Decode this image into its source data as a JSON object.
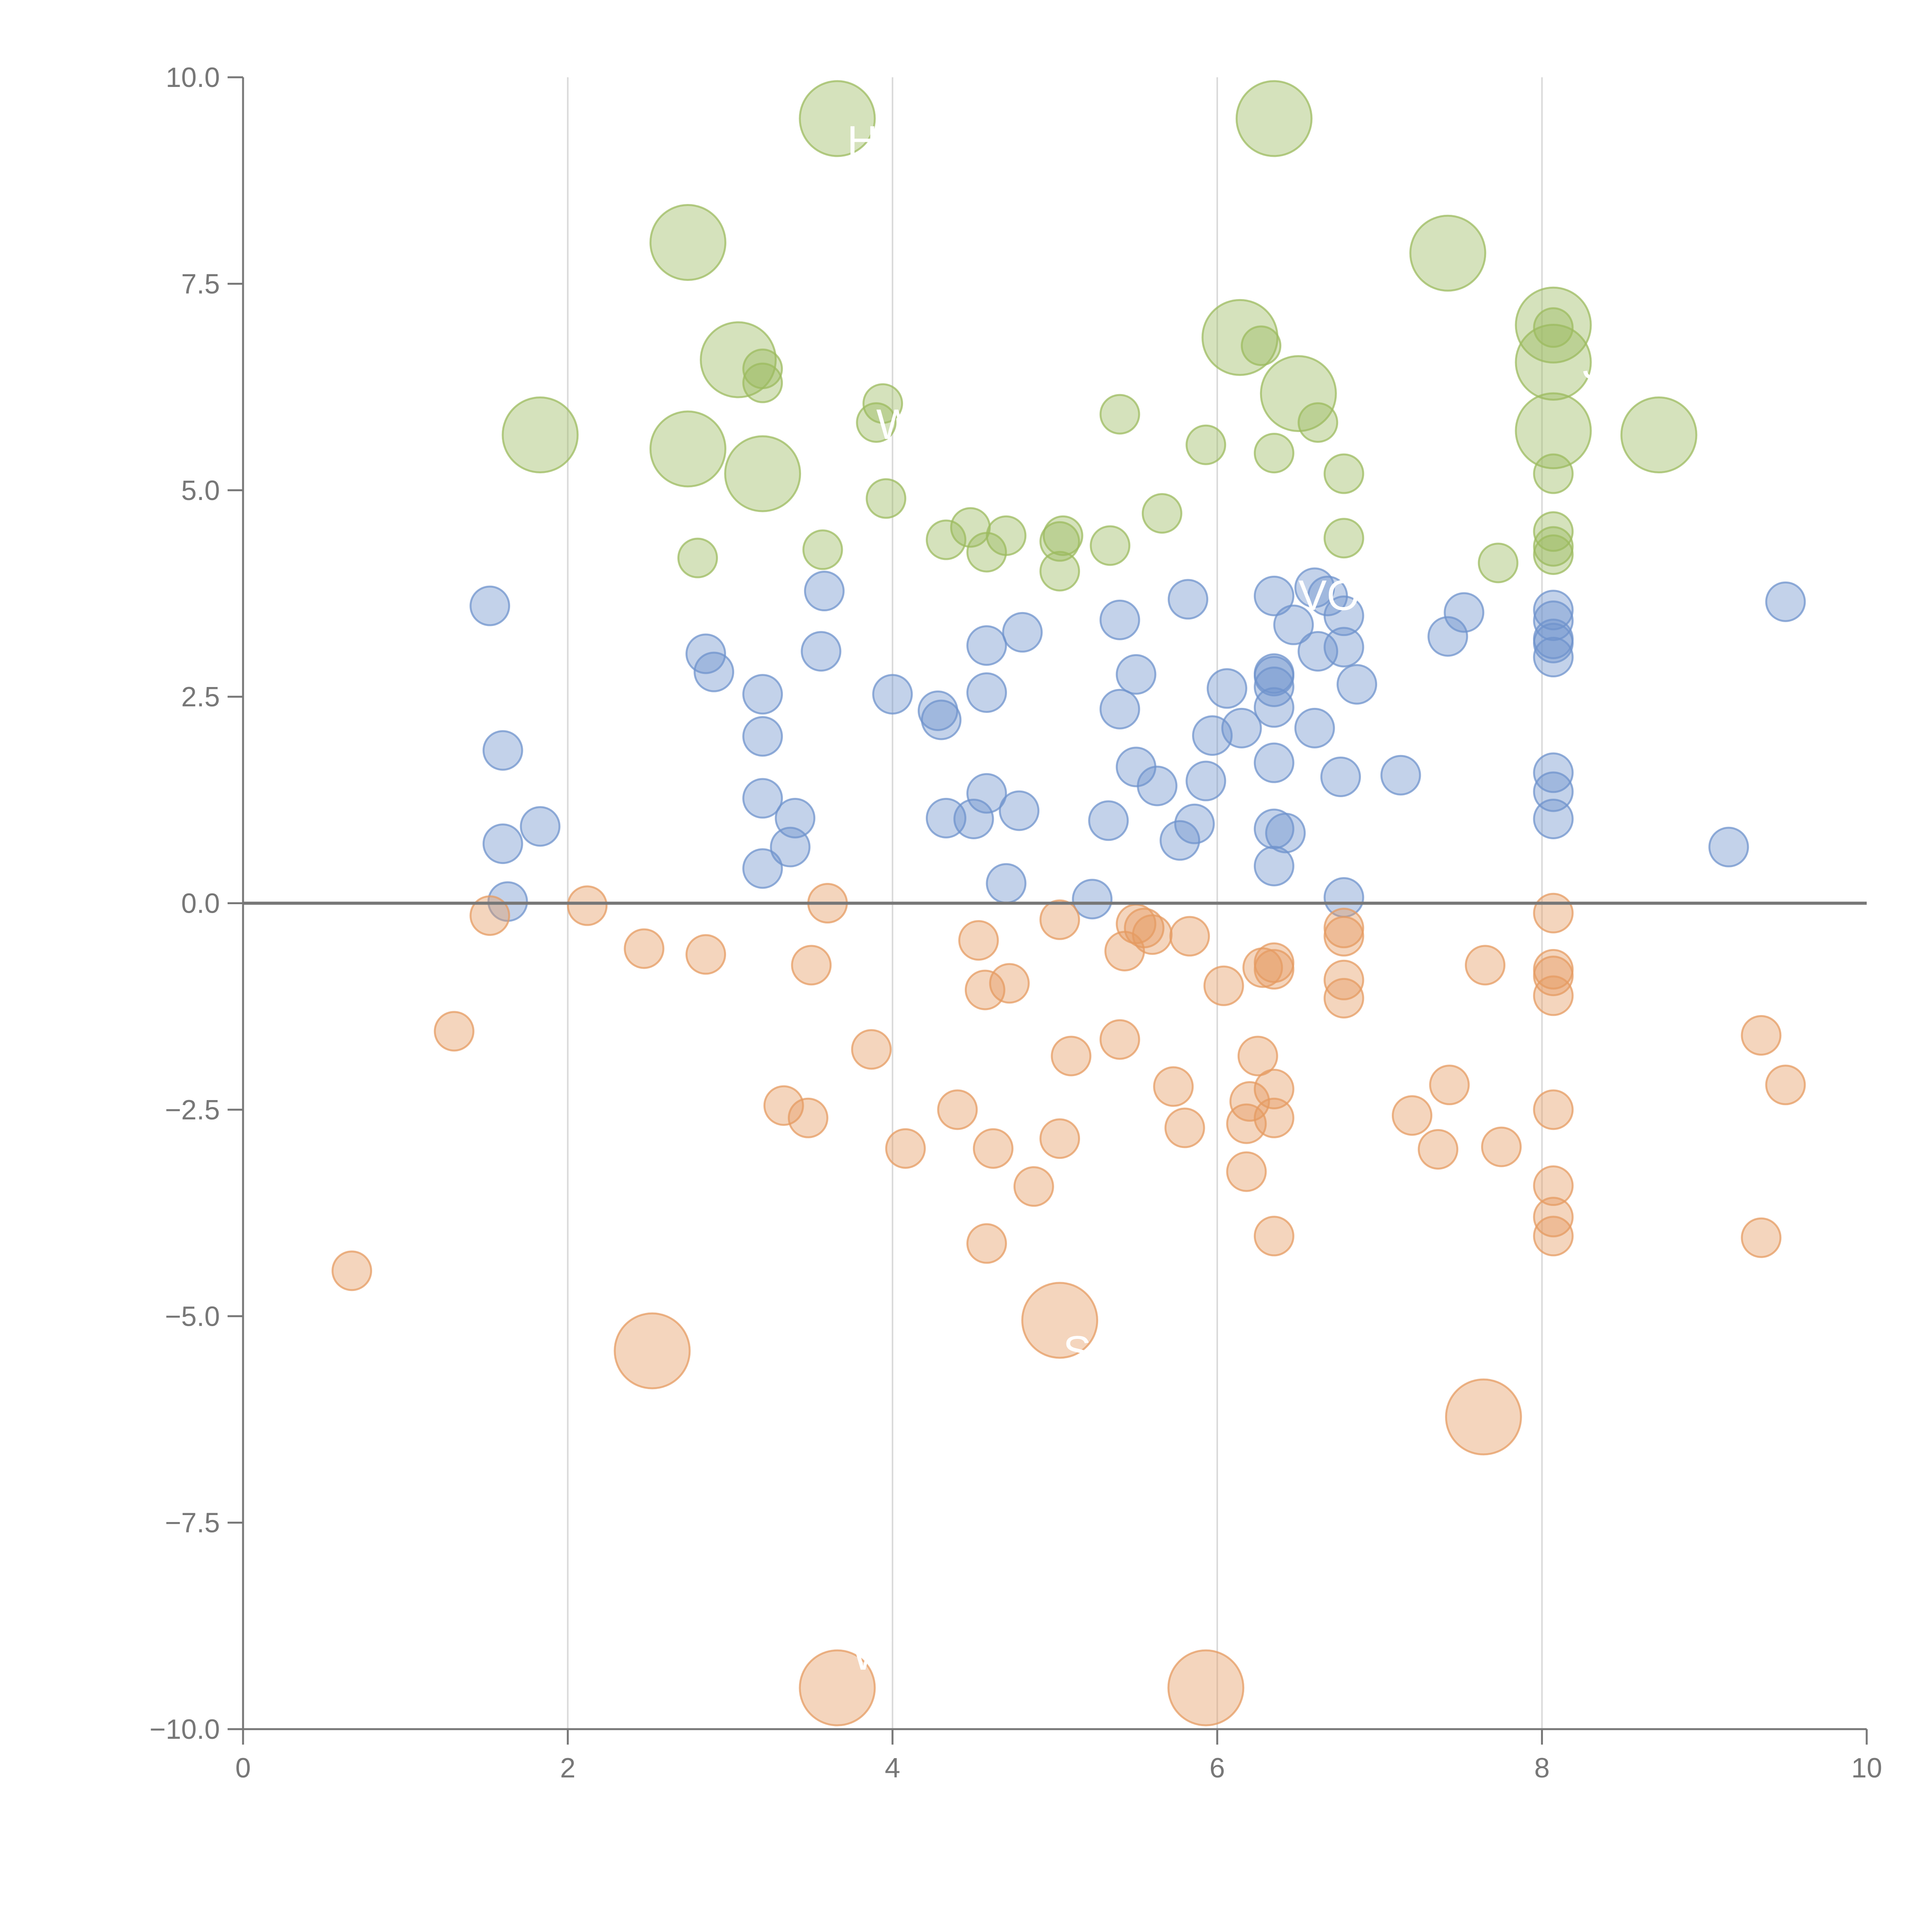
{
  "chart_data": {
    "type": "scatter",
    "title": "",
    "xlabel": "",
    "ylabel": "",
    "xlim": [
      0,
      10
    ],
    "ylim": [
      -10,
      10
    ],
    "x_ticks": [
      0,
      2,
      4,
      6,
      8,
      10
    ],
    "x_tick_labels": [
      "0",
      "2",
      "4",
      "6",
      "8",
      "10"
    ],
    "y_ticks": [
      10,
      7.5,
      5,
      2.5,
      0,
      -2.5,
      -5,
      -7.5,
      -10
    ],
    "y_tick_labels": [
      "10.0",
      "7.5",
      "5.0",
      "2.5",
      "0.0",
      "−2.5",
      "−5.0",
      "−7.5",
      "−10.0"
    ],
    "vertical_grid": true,
    "horizontal_grid": false,
    "zero_line": true,
    "legend": "none",
    "series": [
      {
        "color": "#9cbb5f",
        "points": [
          [
            3.66,
            9.5,
            2
          ],
          [
            6.35,
            9.5,
            2
          ],
          [
            2.74,
            8.0,
            2
          ],
          [
            7.42,
            7.87,
            2
          ],
          [
            8.07,
            7.0,
            2
          ],
          [
            6.14,
            6.85,
            2
          ],
          [
            3.05,
            6.58,
            2
          ],
          [
            8.07,
            6.55,
            2
          ],
          [
            6.5,
            6.17,
            2
          ],
          [
            8.07,
            5.72,
            2
          ],
          [
            1.83,
            5.67,
            2
          ],
          [
            8.72,
            5.67,
            2
          ],
          [
            2.74,
            5.5,
            2
          ],
          [
            3.2,
            5.2,
            2
          ],
          [
            8.07,
            6.97,
            1
          ],
          [
            6.27,
            6.75,
            1
          ],
          [
            3.2,
            6.47,
            1
          ],
          [
            3.2,
            6.3,
            1
          ],
          [
            3.94,
            6.05,
            1
          ],
          [
            5.4,
            5.92,
            1
          ],
          [
            3.9,
            5.82,
            1
          ],
          [
            6.62,
            5.82,
            1
          ],
          [
            5.93,
            5.55,
            1
          ],
          [
            6.35,
            5.45,
            1
          ],
          [
            6.78,
            5.2,
            1
          ],
          [
            8.07,
            5.2,
            1
          ],
          [
            3.96,
            4.9,
            1
          ],
          [
            5.66,
            4.72,
            1
          ],
          [
            4.48,
            4.55,
            1
          ],
          [
            4.7,
            4.45,
            1
          ],
          [
            5.05,
            4.45,
            1
          ],
          [
            8.07,
            4.5,
            1
          ],
          [
            6.78,
            4.42,
            1
          ],
          [
            4.33,
            4.4,
            1
          ],
          [
            5.03,
            4.38,
            1
          ],
          [
            5.34,
            4.33,
            1
          ],
          [
            8.07,
            4.32,
            1
          ],
          [
            3.57,
            4.28,
            1
          ],
          [
            4.58,
            4.25,
            1
          ],
          [
            8.07,
            4.22,
            1
          ],
          [
            2.8,
            4.18,
            1
          ],
          [
            7.73,
            4.12,
            1
          ],
          [
            5.03,
            4.02,
            1
          ]
        ],
        "labels": [
          "H",
          "W",
          "VOB",
          "J"
        ]
      },
      {
        "color": "#6f93cc",
        "points": [
          [
            6.6,
            3.82,
            1
          ],
          [
            6.35,
            3.72,
            1
          ],
          [
            6.68,
            3.72,
            1
          ],
          [
            3.58,
            3.78,
            1
          ],
          [
            5.82,
            3.68,
            1
          ],
          [
            9.5,
            3.65,
            1
          ],
          [
            1.52,
            3.6,
            1
          ],
          [
            8.07,
            3.55,
            1
          ],
          [
            7.52,
            3.52,
            1
          ],
          [
            6.78,
            3.48,
            1
          ],
          [
            8.07,
            3.42,
            1
          ],
          [
            5.4,
            3.43,
            1
          ],
          [
            6.47,
            3.37,
            1
          ],
          [
            4.8,
            3.28,
            1
          ],
          [
            7.42,
            3.23,
            1
          ],
          [
            8.07,
            3.2,
            1
          ],
          [
            8.07,
            3.15,
            1
          ],
          [
            4.58,
            3.12,
            1
          ],
          [
            6.78,
            3.1,
            1
          ],
          [
            3.56,
            3.05,
            1
          ],
          [
            6.62,
            3.05,
            1
          ],
          [
            2.85,
            3.02,
            1
          ],
          [
            8.07,
            2.98,
            1
          ],
          [
            2.9,
            2.8,
            1
          ],
          [
            6.35,
            2.78,
            1
          ],
          [
            6.35,
            2.75,
            1
          ],
          [
            5.5,
            2.77,
            1
          ],
          [
            6.86,
            2.65,
            1
          ],
          [
            6.35,
            2.62,
            1
          ],
          [
            6.06,
            2.6,
            1
          ],
          [
            3.2,
            2.53,
            1
          ],
          [
            4.0,
            2.53,
            1
          ],
          [
            4.58,
            2.55,
            1
          ],
          [
            6.35,
            2.37,
            1
          ],
          [
            5.4,
            2.35,
            1
          ],
          [
            4.28,
            2.33,
            1
          ],
          [
            4.3,
            2.22,
            1
          ],
          [
            6.6,
            2.12,
            1
          ],
          [
            6.15,
            2.12,
            1
          ],
          [
            5.97,
            2.03,
            1
          ],
          [
            3.2,
            2.02,
            1
          ],
          [
            1.6,
            1.85,
            1
          ],
          [
            6.35,
            1.7,
            1
          ],
          [
            5.5,
            1.65,
            1
          ],
          [
            8.07,
            1.58,
            1
          ],
          [
            7.13,
            1.55,
            1
          ],
          [
            6.76,
            1.53,
            1
          ],
          [
            5.93,
            1.48,
            1
          ],
          [
            5.63,
            1.42,
            1
          ],
          [
            8.07,
            1.35,
            1
          ],
          [
            4.58,
            1.33,
            1
          ],
          [
            3.2,
            1.27,
            1
          ],
          [
            4.78,
            1.12,
            1
          ],
          [
            3.4,
            1.03,
            1
          ],
          [
            4.33,
            1.03,
            1
          ],
          [
            4.5,
            1.02,
            1
          ],
          [
            8.07,
            1.02,
            1
          ],
          [
            5.33,
            1.0,
            1
          ],
          [
            5.86,
            0.96,
            1
          ],
          [
            1.83,
            0.93,
            1
          ],
          [
            6.35,
            0.9,
            1
          ],
          [
            6.42,
            0.85,
            1
          ],
          [
            5.77,
            0.76,
            1
          ],
          [
            1.6,
            0.72,
            1
          ],
          [
            3.37,
            0.68,
            1
          ],
          [
            9.15,
            0.68,
            1
          ],
          [
            6.35,
            0.45,
            1
          ],
          [
            3.2,
            0.42,
            1
          ],
          [
            4.7,
            0.24,
            1
          ],
          [
            6.78,
            0.07,
            1
          ],
          [
            5.23,
            0.05,
            1
          ],
          [
            1.63,
            0.02,
            1
          ]
        ],
        "labels": []
      },
      {
        "color": "#e59b62",
        "points": [
          [
            3.6,
            0.0,
            1
          ],
          [
            2.12,
            -0.03,
            1
          ],
          [
            1.52,
            -0.15,
            1
          ],
          [
            8.07,
            -0.12,
            1
          ],
          [
            5.03,
            -0.2,
            1
          ],
          [
            5.5,
            -0.25,
            1
          ],
          [
            6.78,
            -0.3,
            1
          ],
          [
            5.55,
            -0.3,
            1
          ],
          [
            5.6,
            -0.38,
            1
          ],
          [
            5.83,
            -0.4,
            1
          ],
          [
            6.78,
            -0.4,
            1
          ],
          [
            4.53,
            -0.45,
            1
          ],
          [
            2.47,
            -0.55,
            1
          ],
          [
            5.43,
            -0.58,
            1
          ],
          [
            2.85,
            -0.62,
            1
          ],
          [
            6.35,
            -0.72,
            1
          ],
          [
            3.5,
            -0.75,
            1
          ],
          [
            7.65,
            -0.75,
            1
          ],
          [
            6.28,
            -0.78,
            1
          ],
          [
            6.35,
            -0.8,
            1
          ],
          [
            8.07,
            -0.8,
            1
          ],
          [
            8.07,
            -0.88,
            1
          ],
          [
            6.78,
            -0.93,
            1
          ],
          [
            4.72,
            -0.97,
            1
          ],
          [
            6.04,
            -1.0,
            1
          ],
          [
            4.57,
            -1.05,
            1
          ],
          [
            8.07,
            -1.12,
            1
          ],
          [
            6.78,
            -1.15,
            1
          ],
          [
            1.3,
            -1.55,
            1
          ],
          [
            9.35,
            -1.6,
            1
          ],
          [
            5.4,
            -1.65,
            1
          ],
          [
            3.87,
            -1.77,
            1
          ],
          [
            6.25,
            -1.85,
            1
          ],
          [
            5.1,
            -1.85,
            1
          ],
          [
            7.43,
            -2.2,
            1
          ],
          [
            9.5,
            -2.2,
            1
          ],
          [
            5.73,
            -2.22,
            1
          ],
          [
            6.35,
            -2.25,
            1
          ],
          [
            6.2,
            -2.4,
            1
          ],
          [
            3.33,
            -2.45,
            1
          ],
          [
            8.07,
            -2.5,
            1
          ],
          [
            4.4,
            -2.5,
            1
          ],
          [
            7.2,
            -2.57,
            1
          ],
          [
            6.35,
            -2.6,
            1
          ],
          [
            3.48,
            -2.6,
            1
          ],
          [
            6.18,
            -2.67,
            1
          ],
          [
            5.8,
            -2.72,
            1
          ],
          [
            5.03,
            -2.85,
            1
          ],
          [
            4.08,
            -2.97,
            1
          ],
          [
            4.62,
            -2.97,
            1
          ],
          [
            7.36,
            -2.98,
            1
          ],
          [
            7.75,
            -2.95,
            1
          ],
          [
            6.18,
            -3.25,
            1
          ],
          [
            8.07,
            -3.42,
            1
          ],
          [
            4.87,
            -3.43,
            1
          ],
          [
            8.07,
            -3.8,
            1
          ],
          [
            6.35,
            -4.03,
            1
          ],
          [
            8.07,
            -4.03,
            1
          ],
          [
            9.35,
            -4.05,
            1
          ],
          [
            4.58,
            -4.12,
            1
          ],
          [
            0.67,
            -4.45,
            1
          ],
          [
            5.03,
            -5.05,
            2
          ],
          [
            2.52,
            -5.42,
            2
          ],
          [
            7.64,
            -6.22,
            2
          ],
          [
            3.66,
            -9.5,
            2
          ],
          [
            5.93,
            -9.5,
            2
          ]
        ],
        "labels": [
          "S",
          "W"
        ]
      }
    ]
  }
}
